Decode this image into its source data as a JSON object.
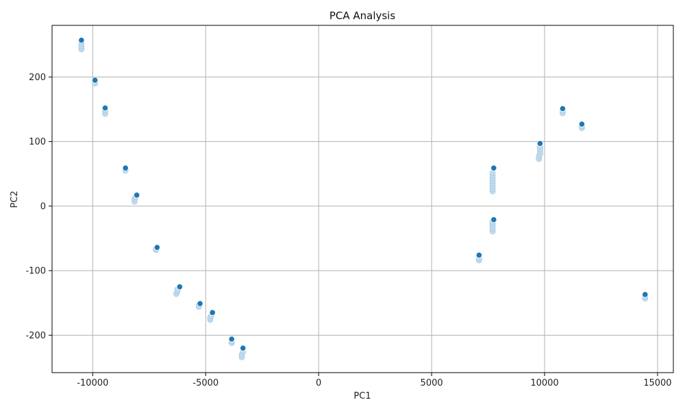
{
  "chart_data": {
    "type": "scatter",
    "title": "PCA Analysis",
    "xlabel": "PC1",
    "ylabel": "PC2",
    "xlim": [
      -11800,
      15700
    ],
    "ylim": [
      -258,
      280
    ],
    "xticks": [
      -10000,
      -5000,
      0,
      5000,
      10000,
      15000
    ],
    "yticks": [
      -200,
      -100,
      0,
      100,
      200
    ],
    "xtick_labels": [
      "-10000",
      "-5000",
      "0",
      "5000",
      "10000",
      "15000"
    ],
    "ytick_labels": [
      "-200",
      "-100",
      "0",
      "100",
      "200"
    ],
    "grid": true,
    "colors": {
      "highlight": "#1f77b4",
      "faded": "#c6dbef",
      "faded_edge": "#9ecae1",
      "grid": "#b0b0b0"
    },
    "series": [
      {
        "style": "faded",
        "x": [
          -10500,
          -10500,
          -10500,
          -10500,
          -9900,
          -9900,
          -9450,
          -9450,
          -9450,
          -8550,
          -8550,
          -8150,
          -8150,
          -8100,
          -7200,
          -7200,
          -6300,
          -6250,
          -6250,
          -5300,
          -5300,
          -4800,
          -4800,
          -4750,
          -3850,
          -3850,
          -3400,
          -3400,
          -3350,
          7100,
          7100,
          7700,
          7700,
          7700,
          7700,
          7700,
          7700,
          7700,
          7700,
          7700,
          7700,
          7700,
          7700,
          7700,
          9750,
          9750,
          9800,
          9800,
          9800,
          9800,
          10800,
          10800,
          11650,
          11650,
          14450,
          14450
        ],
        "y": [
          243,
          247,
          251,
          255,
          190,
          193,
          143,
          147,
          150,
          55,
          58,
          7,
          11,
          14,
          -68,
          -66,
          -136,
          -132,
          -129,
          -156,
          -153,
          -176,
          -173,
          -170,
          -212,
          -209,
          -234,
          -230,
          -226,
          -84,
          -80,
          23,
          27,
          31,
          35,
          39,
          43,
          47,
          51,
          -39,
          -35,
          -31,
          -27,
          -24,
          73,
          77,
          80,
          84,
          88,
          92,
          144,
          148,
          121,
          124,
          -143,
          -140
        ]
      },
      {
        "style": "highlight",
        "x": [
          -10500,
          -9900,
          -9450,
          -8550,
          -8050,
          -7150,
          -6150,
          -5250,
          -4700,
          -3850,
          -3350,
          7100,
          7750,
          7750,
          9800,
          10800,
          11650,
          14450
        ],
        "y": [
          257,
          195,
          152,
          59,
          17,
          -64,
          -125,
          -151,
          -165,
          -206,
          -220,
          -76,
          59,
          -21,
          97,
          151,
          127,
          -137
        ]
      }
    ]
  }
}
